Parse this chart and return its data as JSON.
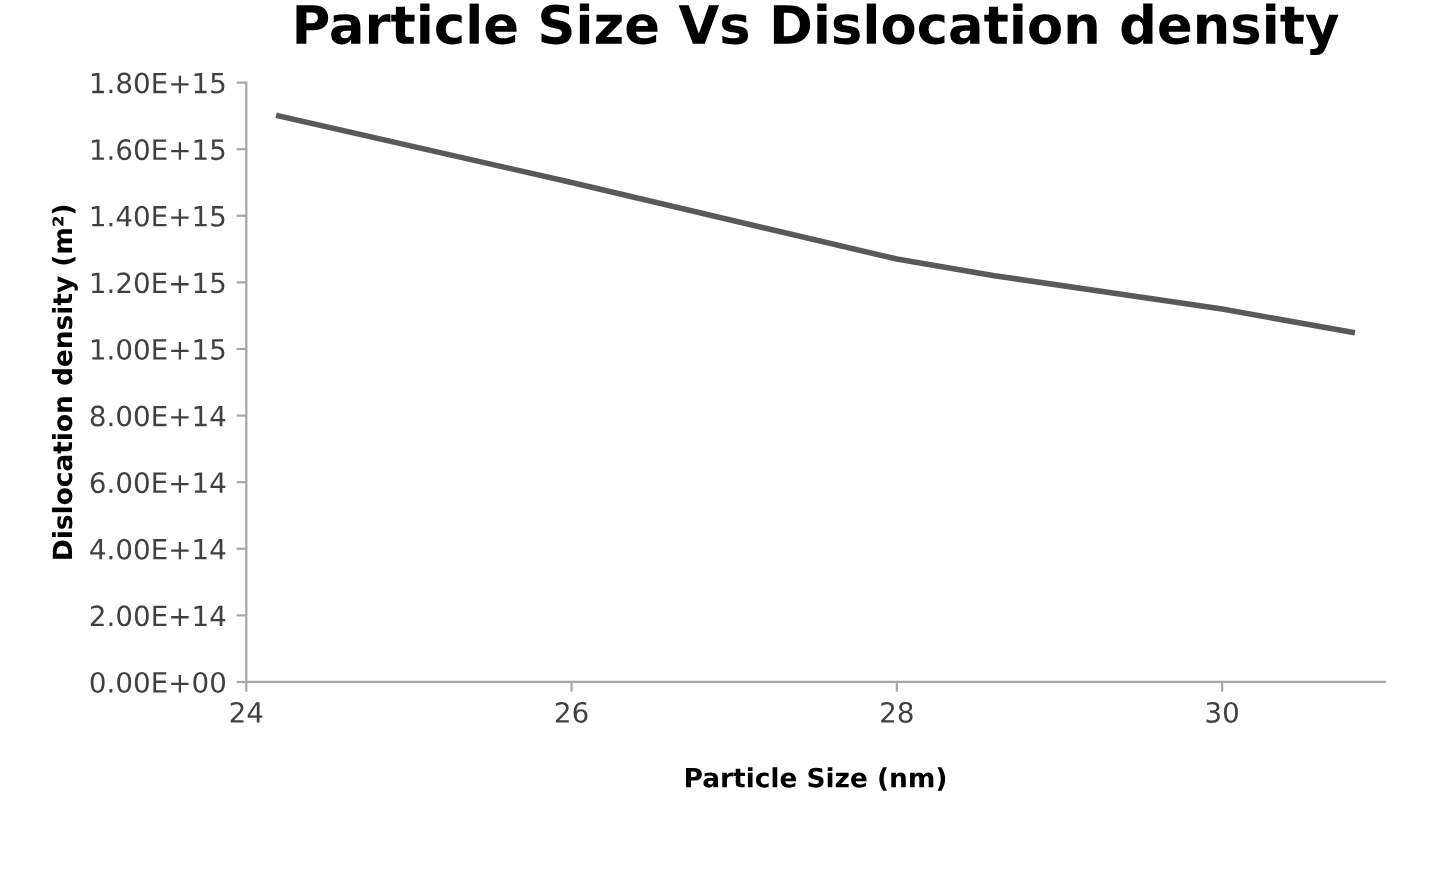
{
  "chart_data": {
    "type": "line",
    "title": "Particle Size Vs Dislocation density",
    "xlabel": "Particle Size (nm)",
    "ylabel": "Dislocation density (m²)",
    "series": [
      {
        "color": "#595959",
        "x": [
          24.2,
          26,
          28,
          28.6,
          30,
          30.8
        ],
        "values": [
          1700000000000000.0,
          1500000000000000.0,
          1270000000000000.0,
          1220000000000000.0,
          1120000000000000.0,
          1050000000000000.0
        ]
      }
    ],
    "xlim": [
      24,
      31
    ],
    "xticks": [
      24,
      26,
      28,
      30
    ],
    "ylim": [
      0,
      1800000000000000.0
    ],
    "yticks": [
      {
        "value": 0,
        "label": "0.00E+00"
      },
      {
        "value": 200000000000000.0,
        "label": "2.00E+14"
      },
      {
        "value": 400000000000000.0,
        "label": "4.00E+14"
      },
      {
        "value": 600000000000000.0,
        "label": "6.00E+14"
      },
      {
        "value": 800000000000000.0,
        "label": "8.00E+14"
      },
      {
        "value": 1000000000000000.0,
        "label": "1.00E+15"
      },
      {
        "value": 1200000000000000.0,
        "label": "1.20E+15"
      },
      {
        "value": 1400000000000000.0,
        "label": "1.40E+15"
      },
      {
        "value": 1600000000000000.0,
        "label": "1.60E+15"
      },
      {
        "value": 1800000000000000.0,
        "label": "1.80E+15"
      }
    ],
    "grid": false,
    "legend": false,
    "marker": "none",
    "line_style": "solid"
  }
}
